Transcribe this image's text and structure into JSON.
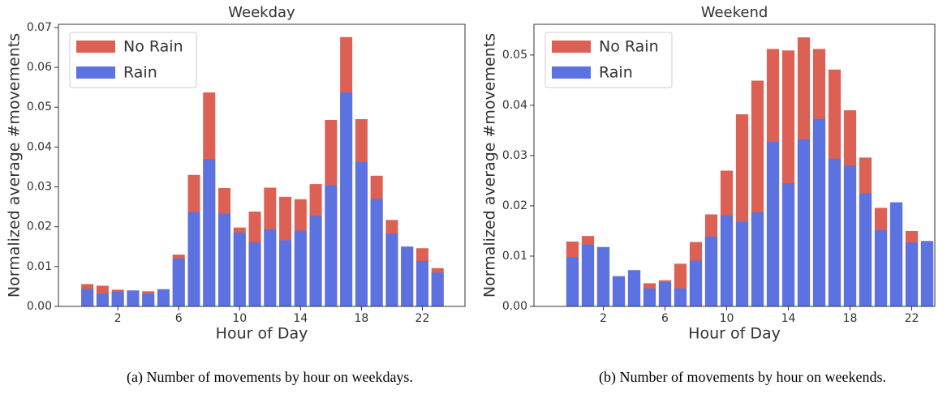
{
  "chart_data": [
    {
      "type": "bar",
      "title": "Weekday",
      "xlabel": "Hour of Day",
      "ylabel": "Normalized average #movements",
      "caption": "(a) Number of movements by hour on weekdays.",
      "x": [
        0,
        1,
        2,
        3,
        4,
        5,
        6,
        7,
        8,
        9,
        10,
        11,
        12,
        13,
        14,
        15,
        16,
        17,
        18,
        19,
        20,
        21,
        22,
        23
      ],
      "series": [
        {
          "name": "No Rain",
          "color": "#dd6055",
          "values": [
            0.0056,
            0.0052,
            0.0042,
            0.004,
            0.0038,
            0.0043,
            0.013,
            0.033,
            0.0537,
            0.0297,
            0.0198,
            0.0238,
            0.0298,
            0.0275,
            0.0269,
            0.0307,
            0.0468,
            0.0676,
            0.047,
            0.0328,
            0.0217,
            0.015,
            0.0146,
            0.0096
          ]
        },
        {
          "name": "Rain",
          "color": "#5b72e0",
          "values": [
            0.0044,
            0.0032,
            0.0037,
            0.004,
            0.0032,
            0.0043,
            0.012,
            0.0237,
            0.037,
            0.0233,
            0.0185,
            0.0161,
            0.0193,
            0.0166,
            0.019,
            0.0228,
            0.0304,
            0.0537,
            0.0362,
            0.027,
            0.0183,
            0.015,
            0.0114,
            0.0085
          ]
        }
      ],
      "xlim": [
        -1.9,
        24.8
      ],
      "xticks": [
        2,
        6,
        10,
        14,
        18,
        22
      ],
      "ylim": [
        0,
        0.0708
      ],
      "yticks": [
        {
          "value": 0,
          "label": "0.00"
        },
        {
          "value": 0.01,
          "label": "0.01"
        },
        {
          "value": 0.02,
          "label": "0.02"
        },
        {
          "value": 0.03,
          "label": "0.03"
        },
        {
          "value": 0.04,
          "label": "0.04"
        },
        {
          "value": 0.05,
          "label": "0.05"
        },
        {
          "value": 0.06,
          "label": "0.06"
        },
        {
          "value": 0.07,
          "label": "0.07"
        }
      ],
      "legend": "upper left"
    },
    {
      "type": "bar",
      "title": "Weekend",
      "xlabel": "Hour of Day",
      "ylabel": "Normalized average #movements",
      "caption": "(b) Number of movements by hour on weekends.",
      "x": [
        0,
        1,
        2,
        3,
        4,
        5,
        6,
        7,
        8,
        9,
        10,
        11,
        12,
        13,
        14,
        15,
        16,
        17,
        18,
        19,
        20,
        21,
        22,
        23
      ],
      "series": [
        {
          "name": "No Rain",
          "color": "#dd6055",
          "values": [
            0.0129,
            0.014,
            0.0118,
            0.006,
            0.0072,
            0.0046,
            0.0052,
            0.0085,
            0.0128,
            0.0183,
            0.027,
            0.0382,
            0.0449,
            0.0512,
            0.0509,
            0.0535,
            0.0512,
            0.0471,
            0.039,
            0.0296,
            0.0196,
            0.02,
            0.015,
            0.013
          ]
        },
        {
          "name": "Rain",
          "color": "#5b72e0",
          "values": [
            0.0098,
            0.0123,
            0.0118,
            0.006,
            0.0072,
            0.0036,
            0.0048,
            0.0036,
            0.0091,
            0.0139,
            0.0181,
            0.0168,
            0.0187,
            0.0327,
            0.0245,
            0.0332,
            0.0373,
            0.0294,
            0.028,
            0.0225,
            0.0152,
            0.0207,
            0.0127,
            0.013
          ]
        }
      ],
      "xlim": [
        -2.5,
        23.5
      ],
      "xticks": [
        2,
        6,
        10,
        14,
        18,
        22
      ],
      "ylim": [
        0,
        0.0561
      ],
      "yticks": [
        {
          "value": 0,
          "label": "0.00"
        },
        {
          "value": 0.01,
          "label": "0.01"
        },
        {
          "value": 0.02,
          "label": "0.02"
        },
        {
          "value": 0.03,
          "label": "0.03"
        },
        {
          "value": 0.04,
          "label": "0.04"
        },
        {
          "value": 0.05,
          "label": "0.05"
        }
      ],
      "legend": "upper left"
    }
  ]
}
